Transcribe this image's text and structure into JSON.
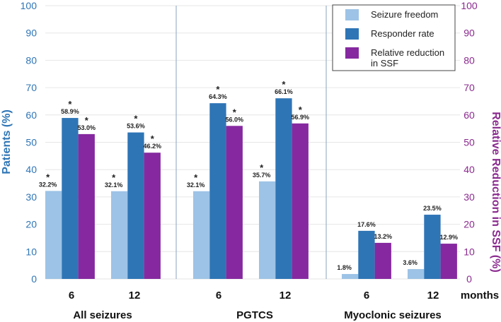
{
  "chart_data": {
    "type": "bar",
    "y_left_label": "Patients (%)",
    "y_right_label": "Relative Reduction in SSF (%)",
    "ylim": [
      0,
      100
    ],
    "yticks": [
      0,
      10,
      20,
      30,
      40,
      50,
      60,
      70,
      80,
      90,
      100
    ],
    "x_unit_label": "months",
    "groups": [
      {
        "name": "All seizures",
        "categories": [
          "6",
          "12"
        ]
      },
      {
        "name": "PGTCS",
        "categories": [
          "6",
          "12"
        ]
      },
      {
        "name": "Myoclonic  seizures",
        "categories": [
          "6",
          "12"
        ]
      }
    ],
    "series": [
      {
        "name": "Seizure freedom",
        "color": "#9dc3e6",
        "values": [
          32.2,
          32.1,
          32.1,
          35.7,
          1.8,
          3.6
        ],
        "labels": [
          "32.2%",
          "32.1%",
          "32.1%",
          "35.7%",
          "1.8%",
          "3.6%"
        ],
        "significant": [
          true,
          true,
          true,
          true,
          false,
          false
        ]
      },
      {
        "name": "Responder rate",
        "color": "#2e75b6",
        "values": [
          58.9,
          53.6,
          64.3,
          66.1,
          17.6,
          23.5
        ],
        "labels": [
          "58.9%",
          "53.6%",
          "64.3%",
          "66.1%",
          "17.6%",
          "23.5%"
        ],
        "significant": [
          true,
          true,
          true,
          true,
          false,
          false
        ]
      },
      {
        "name": "Relative reduction in SSF",
        "color": "#8629a0",
        "values": [
          53.0,
          46.2,
          56.0,
          56.9,
          13.2,
          12.9
        ],
        "labels": [
          "53.0%",
          "46.2%",
          "56.0%",
          "56.9%",
          "13.2%",
          "12.9%"
        ],
        "significant": [
          true,
          true,
          true,
          true,
          false,
          false
        ]
      }
    ],
    "significance_marker": "*",
    "legend": {
      "placement": "top-right",
      "entries": [
        "Seizure freedom",
        "Responder rate",
        "Relative reduction",
        "in SSF"
      ]
    },
    "grid": true
  }
}
